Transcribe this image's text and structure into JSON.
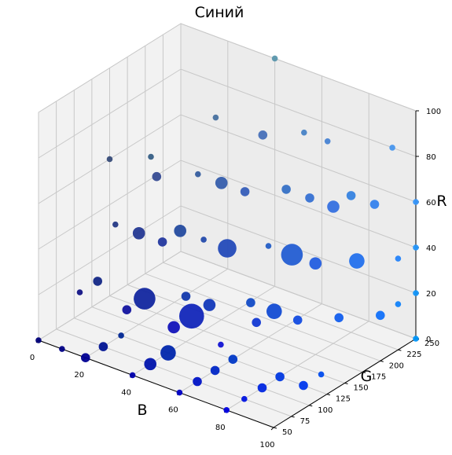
{
  "chart_data": {
    "type": "scatter3d",
    "title": "Синий",
    "xlabel": "B",
    "ylabel": "G",
    "zlabel": "R",
    "xlim": [
      0,
      100
    ],
    "ylim": [
      50,
      250
    ],
    "zlim": [
      0,
      100
    ],
    "xticks": [
      "0",
      "20",
      "40",
      "60",
      "80",
      "100"
    ],
    "yticks": [
      "50",
      "75",
      "100",
      "125",
      "150",
      "175",
      "200",
      "225",
      "250"
    ],
    "zticks": [
      "0",
      "20",
      "40",
      "60",
      "80",
      "100"
    ],
    "grid": true,
    "points": [
      {
        "b": 0,
        "g": 50,
        "r": 0,
        "s": 1
      },
      {
        "b": 10,
        "g": 50,
        "r": 0,
        "s": 1
      },
      {
        "b": 20,
        "g": 50,
        "r": 0,
        "s": 2
      },
      {
        "b": 40,
        "g": 50,
        "r": 0,
        "s": 1
      },
      {
        "b": 60,
        "g": 50,
        "r": 0,
        "s": 1
      },
      {
        "b": 80,
        "g": 50,
        "r": 0,
        "s": 1
      },
      {
        "b": 10,
        "g": 75,
        "r": 20,
        "s": 1
      },
      {
        "b": 20,
        "g": 75,
        "r": 0,
        "s": 2
      },
      {
        "b": 30,
        "g": 75,
        "r": 20,
        "s": 2
      },
      {
        "b": 40,
        "g": 75,
        "r": 0,
        "s": 3
      },
      {
        "b": 50,
        "g": 75,
        "r": 20,
        "s": 3
      },
      {
        "b": 60,
        "g": 75,
        "r": 0,
        "s": 2
      },
      {
        "b": 70,
        "g": 75,
        "r": 20,
        "s": 1
      },
      {
        "b": 80,
        "g": 75,
        "r": 0,
        "s": 1
      },
      {
        "b": 10,
        "g": 100,
        "r": 20,
        "s": 2
      },
      {
        "b": 20,
        "g": 100,
        "r": 0,
        "s": 1
      },
      {
        "b": 30,
        "g": 100,
        "r": 20,
        "s": 6
      },
      {
        "b": 40,
        "g": 100,
        "r": 0,
        "s": 4
      },
      {
        "b": 50,
        "g": 100,
        "r": 20,
        "s": 7
      },
      {
        "b": 60,
        "g": 100,
        "r": 0,
        "s": 2
      },
      {
        "b": 80,
        "g": 100,
        "r": 0,
        "s": 2
      },
      {
        "b": 10,
        "g": 125,
        "r": 40,
        "s": 1
      },
      {
        "b": 20,
        "g": 125,
        "r": 40,
        "s": 3
      },
      {
        "b": 30,
        "g": 125,
        "r": 40,
        "s": 2
      },
      {
        "b": 40,
        "g": 125,
        "r": 20,
        "s": 2
      },
      {
        "b": 50,
        "g": 125,
        "r": 20,
        "s": 3
      },
      {
        "b": 60,
        "g": 125,
        "r": 0,
        "s": 2
      },
      {
        "b": 70,
        "g": 125,
        "r": 20,
        "s": 2
      },
      {
        "b": 80,
        "g": 125,
        "r": 0,
        "s": 2
      },
      {
        "b": 90,
        "g": 125,
        "r": 0,
        "s": 2
      },
      {
        "b": 0,
        "g": 150,
        "r": 60,
        "s": 1
      },
      {
        "b": 20,
        "g": 150,
        "r": 60,
        "s": 2
      },
      {
        "b": 30,
        "g": 150,
        "r": 40,
        "s": 3
      },
      {
        "b": 40,
        "g": 150,
        "r": 40,
        "s": 1
      },
      {
        "b": 50,
        "g": 150,
        "r": 40,
        "s": 5
      },
      {
        "b": 60,
        "g": 150,
        "r": 20,
        "s": 2
      },
      {
        "b": 70,
        "g": 150,
        "r": 20,
        "s": 4
      },
      {
        "b": 80,
        "g": 150,
        "r": 20,
        "s": 2
      },
      {
        "b": 90,
        "g": 150,
        "r": 0,
        "s": 1
      },
      {
        "b": 10,
        "g": 175,
        "r": 60,
        "s": 1
      },
      {
        "b": 30,
        "g": 175,
        "r": 60,
        "s": 1
      },
      {
        "b": 40,
        "g": 175,
        "r": 60,
        "s": 3
      },
      {
        "b": 50,
        "g": 175,
        "r": 60,
        "s": 2
      },
      {
        "b": 60,
        "g": 175,
        "r": 40,
        "s": 1
      },
      {
        "b": 70,
        "g": 175,
        "r": 40,
        "s": 6
      },
      {
        "b": 80,
        "g": 175,
        "r": 40,
        "s": 3
      },
      {
        "b": 90,
        "g": 175,
        "r": 20,
        "s": 2
      },
      {
        "b": 30,
        "g": 200,
        "r": 80,
        "s": 1
      },
      {
        "b": 50,
        "g": 200,
        "r": 80,
        "s": 2
      },
      {
        "b": 60,
        "g": 200,
        "r": 60,
        "s": 2
      },
      {
        "b": 70,
        "g": 200,
        "r": 60,
        "s": 2
      },
      {
        "b": 80,
        "g": 200,
        "r": 60,
        "s": 3
      },
      {
        "b": 90,
        "g": 200,
        "r": 40,
        "s": 4
      },
      {
        "b": 100,
        "g": 200,
        "r": 20,
        "s": 2
      },
      {
        "b": 60,
        "g": 225,
        "r": 80,
        "s": 1
      },
      {
        "b": 70,
        "g": 225,
        "r": 80,
        "s": 1
      },
      {
        "b": 80,
        "g": 225,
        "r": 60,
        "s": 2
      },
      {
        "b": 90,
        "g": 225,
        "r": 60,
        "s": 2
      },
      {
        "b": 100,
        "g": 225,
        "r": 40,
        "s": 1
      },
      {
        "b": 100,
        "g": 225,
        "r": 20,
        "s": 1
      },
      {
        "b": 40,
        "g": 250,
        "r": 100,
        "s": 1
      },
      {
        "b": 90,
        "g": 250,
        "r": 80,
        "s": 1
      },
      {
        "b": 100,
        "g": 250,
        "r": 60,
        "s": 1
      },
      {
        "b": 100,
        "g": 250,
        "r": 40,
        "s": 1
      },
      {
        "b": 100,
        "g": 250,
        "r": 20,
        "s": 1
      },
      {
        "b": 100,
        "g": 250,
        "r": 0,
        "s": 1
      }
    ]
  }
}
